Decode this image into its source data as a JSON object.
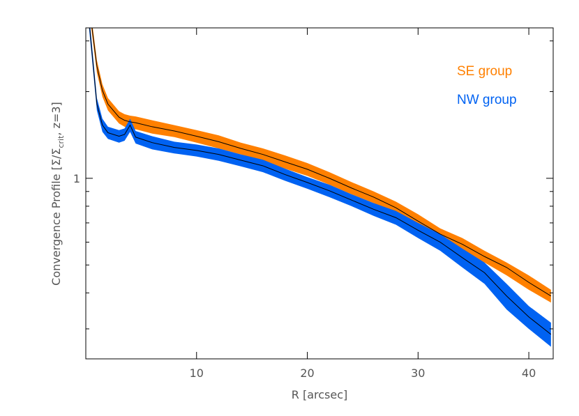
{
  "chart_data": {
    "type": "line-band",
    "xlabel": "R [arcsec]",
    "ylabel": {
      "main": "Convergence Profile [Σ/Σ",
      "sub": "crit",
      "tail": ", z=3]"
    },
    "log_y": true,
    "legend": "upper right",
    "xlim": [
      0,
      42.2
    ],
    "xticks": [
      10,
      20,
      30,
      40
    ],
    "ylim": [
      0.236,
      3.33
    ],
    "yticks": [
      1
    ],
    "yminorticks": [
      0.3,
      0.4,
      0.5,
      0.6,
      0.7,
      0.8,
      0.9,
      2,
      3
    ],
    "line_color": "#000000",
    "x": [
      0.3,
      1,
      1.5,
      2,
      3,
      3.5,
      4,
      4.5,
      6,
      8,
      10,
      12,
      14,
      16,
      18,
      20,
      22,
      24,
      26,
      28,
      30,
      32,
      34,
      36,
      38,
      40,
      42
    ],
    "series": [
      {
        "name": "SE group",
        "color": "#ff8000",
        "values": [
          4.0,
          2.45,
          2.02,
          1.81,
          1.63,
          1.59,
          1.57,
          1.56,
          1.51,
          1.46,
          1.4,
          1.34,
          1.27,
          1.21,
          1.14,
          1.075,
          1.0,
          0.925,
          0.86,
          0.79,
          0.71,
          0.64,
          0.59,
          0.535,
          0.49,
          0.435,
          0.39
        ],
        "lower": [
          3.8,
          2.33,
          1.92,
          1.72,
          1.55,
          1.51,
          1.49,
          1.48,
          1.43,
          1.39,
          1.33,
          1.27,
          1.21,
          1.15,
          1.08,
          1.02,
          0.95,
          0.88,
          0.82,
          0.75,
          0.67,
          0.61,
          0.56,
          0.51,
          0.46,
          0.41,
          0.37
        ],
        "upper": [
          4.2,
          2.57,
          2.12,
          1.9,
          1.71,
          1.67,
          1.65,
          1.64,
          1.59,
          1.53,
          1.47,
          1.41,
          1.33,
          1.27,
          1.2,
          1.13,
          1.05,
          0.97,
          0.9,
          0.83,
          0.75,
          0.67,
          0.62,
          0.56,
          0.51,
          0.46,
          0.41
        ]
      },
      {
        "name": "NW group",
        "color": "#0062f2",
        "values": [
          3.5,
          1.81,
          1.53,
          1.44,
          1.4,
          1.42,
          1.53,
          1.39,
          1.33,
          1.28,
          1.25,
          1.21,
          1.156,
          1.105,
          1.03,
          0.967,
          0.905,
          0.84,
          0.78,
          0.73,
          0.66,
          0.6,
          0.53,
          0.47,
          0.39,
          0.33,
          0.287
        ],
        "lower": [
          3.3,
          1.72,
          1.45,
          1.37,
          1.33,
          1.35,
          1.45,
          1.32,
          1.26,
          1.22,
          1.19,
          1.15,
          1.1,
          1.05,
          0.98,
          0.92,
          0.86,
          0.8,
          0.74,
          0.69,
          0.62,
          0.56,
          0.49,
          0.43,
          0.35,
          0.3,
          0.26
        ],
        "upper": [
          3.7,
          1.9,
          1.61,
          1.51,
          1.47,
          1.49,
          1.61,
          1.46,
          1.4,
          1.34,
          1.31,
          1.27,
          1.21,
          1.16,
          1.08,
          1.01,
          0.95,
          0.88,
          0.82,
          0.77,
          0.7,
          0.64,
          0.57,
          0.51,
          0.43,
          0.36,
          0.315
        ]
      }
    ]
  }
}
